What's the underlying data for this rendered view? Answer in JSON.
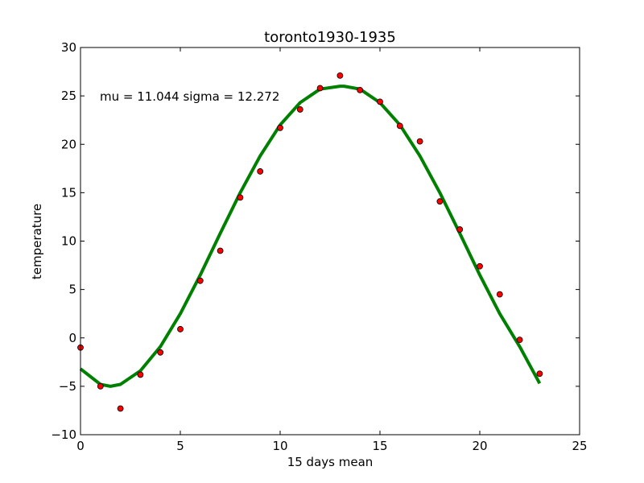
{
  "chart_data": {
    "type": "scatter",
    "title": "toronto1930-1935",
    "xlabel": "15 days mean",
    "ylabel": "temperature",
    "xlim": [
      0,
      25
    ],
    "ylim": [
      -10,
      30
    ],
    "xticks": [
      0,
      5,
      10,
      15,
      20,
      25
    ],
    "yticks": [
      -10,
      -5,
      0,
      5,
      10,
      15,
      20,
      25,
      30
    ],
    "xtick_labels": [
      "0",
      "5",
      "10",
      "15",
      "20",
      "25"
    ],
    "ytick_labels": [
      "−10",
      "−5",
      "0",
      "5",
      "10",
      "15",
      "20",
      "25",
      "30"
    ],
    "grid": false,
    "legend": false,
    "annotation": "mu = 11.044 sigma = 12.272",
    "series": [
      {
        "type": "scatter",
        "color": "#ff0000",
        "x": [
          0,
          1,
          2,
          3,
          4,
          5,
          6,
          7,
          8,
          9,
          10,
          11,
          12,
          13,
          14,
          15,
          16,
          17,
          18,
          19,
          20,
          21,
          22,
          23
        ],
        "y": [
          -1.0,
          -5.0,
          -7.3,
          -3.8,
          -1.5,
          0.9,
          5.9,
          9.0,
          14.5,
          17.2,
          21.7,
          23.6,
          25.8,
          27.1,
          25.6,
          24.4,
          21.9,
          20.3,
          14.1,
          11.2,
          7.4,
          4.5,
          -0.2,
          -3.7
        ]
      },
      {
        "type": "line",
        "color": "#008000",
        "x": [
          0,
          1,
          1.5,
          2,
          3,
          4,
          5,
          6,
          7,
          8,
          9,
          10,
          11,
          12,
          13,
          13.2,
          14,
          15,
          16,
          17,
          18,
          19,
          20,
          21,
          22,
          23
        ],
        "y": [
          -3.2,
          -4.8,
          -5.0,
          -4.8,
          -3.4,
          -0.9,
          2.5,
          6.5,
          10.8,
          15.0,
          18.8,
          22.0,
          24.3,
          25.7,
          26.0,
          26.0,
          25.7,
          24.3,
          22.0,
          18.8,
          15.0,
          10.8,
          6.5,
          2.5,
          -0.9,
          -4.7
        ]
      }
    ]
  }
}
